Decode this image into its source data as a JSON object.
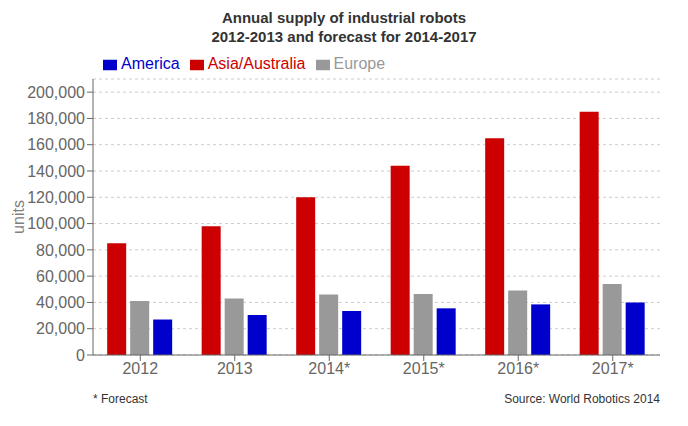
{
  "chart_data": {
    "type": "bar",
    "title": "Annual supply of industrial robots\n2012-2013 and forecast for 2014-2017",
    "ylabel": "units",
    "categories": [
      "2012",
      "2013",
      "2014*",
      "2015*",
      "2016*",
      "2017*"
    ],
    "series": [
      {
        "name": "Asia/Australia",
        "color": "#CC0000",
        "values": [
          85000,
          98000,
          120000,
          144000,
          165000,
          185000
        ]
      },
      {
        "name": "Europe",
        "color": "#999999",
        "values": [
          41000,
          43000,
          46000,
          46500,
          49000,
          54000
        ]
      },
      {
        "name": "America",
        "color": "#0000CC",
        "values": [
          27000,
          30500,
          33500,
          35500,
          38500,
          40000
        ]
      }
    ],
    "ylim": [
      0,
      210000
    ],
    "yticks": [
      0,
      {
        "value": 20000,
        "label": "20,000"
      },
      {
        "value": 40000,
        "label": "40,000"
      },
      {
        "value": 60000,
        "label": "60,000"
      },
      {
        "value": 80000,
        "label": "80,000"
      },
      {
        "value": 100000,
        "label": "100,000"
      },
      {
        "value": 120000,
        "label": "120,000"
      },
      {
        "value": 140000,
        "label": "140,000"
      },
      {
        "value": 160000,
        "label": "160,000"
      },
      {
        "value": 180000,
        "label": "180,000"
      },
      {
        "value": 200000,
        "label": "200,000"
      }
    ],
    "grid": true,
    "legend": "upper left",
    "annotations": [
      "* Forecast",
      "Source: World Robotics 2014"
    ]
  }
}
